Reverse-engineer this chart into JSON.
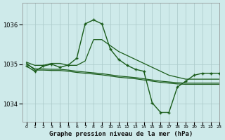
{
  "title": "Graphe pression niveau de la mer (hPa)",
  "background_color": "#ceeaea",
  "grid_color": "#aac8c8",
  "line_color": "#1a5c1a",
  "xlim": [
    -0.5,
    23
  ],
  "ylim": [
    1033.55,
    1036.55
  ],
  "yticks": [
    1034,
    1035,
    1036
  ],
  "ytick_labels": [
    "1034",
    "1035",
    "1036"
  ],
  "xticks": [
    0,
    1,
    2,
    3,
    4,
    5,
    6,
    7,
    8,
    9,
    10,
    11,
    12,
    13,
    14,
    15,
    16,
    17,
    18,
    19,
    20,
    21,
    22,
    23
  ],
  "series": [
    {
      "x": [
        0,
        1,
        2,
        3,
        4,
        5,
        6,
        7,
        8,
        9,
        10,
        11,
        12,
        13,
        14,
        15,
        16,
        17,
        18,
        19,
        20,
        21,
        22,
        23
      ],
      "y": [
        1034.95,
        1034.82,
        1034.95,
        1035.0,
        1034.92,
        1034.98,
        1035.15,
        1036.02,
        1036.12,
        1036.02,
        1035.38,
        1035.12,
        1034.97,
        1034.87,
        1034.82,
        1034.02,
        1033.78,
        1033.78,
        1034.42,
        1034.57,
        1034.72,
        1034.77,
        1034.77,
        1034.77
      ],
      "marker": "+",
      "lw": 1.0
    },
    {
      "x": [
        0,
        1,
        2,
        3,
        4,
        5,
        6,
        7,
        8,
        9,
        10,
        11,
        12,
        13,
        14,
        15,
        16,
        17,
        18,
        19,
        20,
        21,
        22,
        23
      ],
      "y": [
        1035.05,
        1034.97,
        1034.97,
        1035.02,
        1035.02,
        1034.97,
        1034.97,
        1035.08,
        1035.62,
        1035.62,
        1035.47,
        1035.32,
        1035.22,
        1035.12,
        1035.02,
        1034.92,
        1034.82,
        1034.72,
        1034.67,
        1034.62,
        1034.62,
        1034.62,
        1034.62,
        1034.62
      ],
      "marker": null,
      "lw": 0.9
    },
    {
      "x": [
        0,
        1,
        2,
        3,
        4,
        5,
        6,
        7,
        8,
        9,
        10,
        11,
        12,
        13,
        14,
        15,
        16,
        17,
        18,
        19,
        20,
        21,
        22,
        23
      ],
      "y": [
        1035.0,
        1034.88,
        1034.88,
        1034.87,
        1034.87,
        1034.85,
        1034.82,
        1034.8,
        1034.78,
        1034.76,
        1034.73,
        1034.7,
        1034.68,
        1034.66,
        1034.63,
        1034.6,
        1034.57,
        1034.55,
        1034.53,
        1034.52,
        1034.52,
        1034.52,
        1034.52,
        1034.52
      ],
      "marker": null,
      "lw": 0.9
    },
    {
      "x": [
        0,
        1,
        2,
        3,
        4,
        5,
        6,
        7,
        8,
        9,
        10,
        11,
        12,
        13,
        14,
        15,
        16,
        17,
        18,
        19,
        20,
        21,
        22,
        23
      ],
      "y": [
        1035.03,
        1034.85,
        1034.85,
        1034.84,
        1034.84,
        1034.82,
        1034.79,
        1034.77,
        1034.75,
        1034.73,
        1034.7,
        1034.67,
        1034.65,
        1034.63,
        1034.6,
        1034.57,
        1034.54,
        1034.52,
        1034.5,
        1034.49,
        1034.49,
        1034.49,
        1034.49,
        1034.49
      ],
      "marker": null,
      "lw": 0.9
    }
  ]
}
